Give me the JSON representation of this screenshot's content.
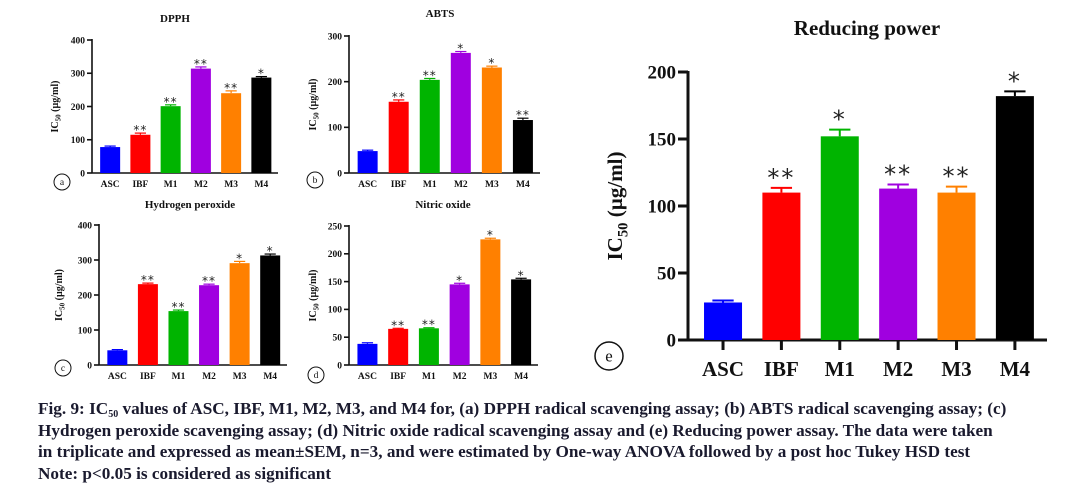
{
  "chart_data": [
    {
      "id": "a",
      "type": "bar",
      "title": "DPPH",
      "panel_label": "a",
      "ylabel": "IC50 (µg/ml)",
      "xlabel": "",
      "categories": [
        "ASC",
        "IBF",
        "M1",
        "M2",
        "M3",
        "M4"
      ],
      "values": [
        78,
        115,
        201,
        314,
        240,
        287
      ],
      "errors": [
        3,
        5,
        4,
        5,
        7,
        3
      ],
      "significance": [
        "",
        "**",
        "**",
        "**",
        "**",
        "*"
      ],
      "colors": [
        "#0000ff",
        "#ff0000",
        "#00b400",
        "#a000e0",
        "#ff8000",
        "#000000"
      ],
      "yticks": [
        0,
        100,
        200,
        300,
        400
      ],
      "ylim": [
        0,
        400
      ],
      "grid": false
    },
    {
      "id": "b",
      "type": "bar",
      "title": "ABTS",
      "panel_label": "b",
      "ylabel": "IC50 (µg/ml)",
      "xlabel": "",
      "categories": [
        "ASC",
        "IBF",
        "M1",
        "M2",
        "M3",
        "M4"
      ],
      "values": [
        48,
        156,
        204,
        263,
        231,
        116
      ],
      "errors": [
        2,
        4,
        3,
        3,
        3,
        4
      ],
      "significance": [
        "",
        "**",
        "**",
        "*",
        "*",
        "**"
      ],
      "colors": [
        "#0000ff",
        "#ff0000",
        "#00b400",
        "#a000e0",
        "#ff8000",
        "#000000"
      ],
      "yticks": [
        0,
        100,
        200,
        300
      ],
      "ylim": [
        0,
        300
      ],
      "grid": false
    },
    {
      "id": "c",
      "type": "bar",
      "title": "Hydrogen peroxide",
      "panel_label": "c",
      "ylabel": "IC50 (µg/ml)",
      "xlabel": "",
      "categories": [
        "ASC",
        "IBF",
        "M1",
        "M2",
        "M3",
        "M4"
      ],
      "values": [
        42,
        231,
        154,
        228,
        291,
        313
      ],
      "errors": [
        2,
        3,
        3,
        3,
        5,
        4
      ],
      "significance": [
        "",
        "**",
        "**",
        "**",
        "*",
        "*"
      ],
      "colors": [
        "#0000ff",
        "#ff0000",
        "#00b400",
        "#a000e0",
        "#ff8000",
        "#000000"
      ],
      "yticks": [
        0,
        100,
        200,
        300,
        400
      ],
      "ylim": [
        0,
        400
      ],
      "grid": false
    },
    {
      "id": "d",
      "type": "bar",
      "title": "Nitric oxide",
      "panel_label": "d",
      "ylabel": "IC50 (µg/ml)",
      "xlabel": "",
      "categories": [
        "ASC",
        "IBF",
        "M1",
        "M2",
        "M3",
        "M4"
      ],
      "values": [
        38,
        65,
        66,
        145,
        226,
        154
      ],
      "errors": [
        2,
        1,
        1,
        2,
        2,
        2
      ],
      "significance": [
        "",
        "**",
        "**",
        "*",
        "*",
        "*"
      ],
      "colors": [
        "#0000ff",
        "#ff0000",
        "#00b400",
        "#a000e0",
        "#ff8000",
        "#000000"
      ],
      "yticks": [
        0,
        50,
        100,
        150,
        200,
        250
      ],
      "ylim": [
        0,
        250
      ],
      "grid": false
    },
    {
      "id": "e",
      "type": "bar",
      "title": "Reducing power",
      "panel_label": "e",
      "ylabel": "IC50 (µg/ml)",
      "xlabel": "",
      "categories": [
        "ASC",
        "IBF",
        "M1",
        "M2",
        "M3",
        "M4"
      ],
      "values": [
        28,
        110,
        152,
        113,
        110,
        182
      ],
      "errors": [
        1.5,
        3.5,
        5,
        3,
        4.5,
        3.5
      ],
      "significance": [
        "",
        "**",
        "*",
        "**",
        "**",
        "*"
      ],
      "colors": [
        "#0000ff",
        "#ff0000",
        "#00b400",
        "#a000e0",
        "#ff8000",
        "#000000"
      ],
      "yticks": [
        0,
        50,
        100,
        150,
        200
      ],
      "ylim": [
        0,
        200
      ],
      "grid": false
    }
  ],
  "caption": {
    "fig_prefix": "Fig. 9: IC",
    "fig_sub": "50",
    "line1_rest": " values of ASC, IBF, M1, M2, M3, and M4 for, (a) DPPH radical scavenging assay; (b) ABTS radical scavenging assay; (c)",
    "line2": "Hydrogen peroxide scavenging assay; (d) Nitric oxide radical scavenging assay and (e) Reducing power assay. The data were taken",
    "line3": "in triplicate and expressed as mean±SEM, n=3, and were estimated by One-way ANOVA followed by a post hoc Tukey HSD test",
    "note": "Note: p<0.05 is considered as significant"
  }
}
